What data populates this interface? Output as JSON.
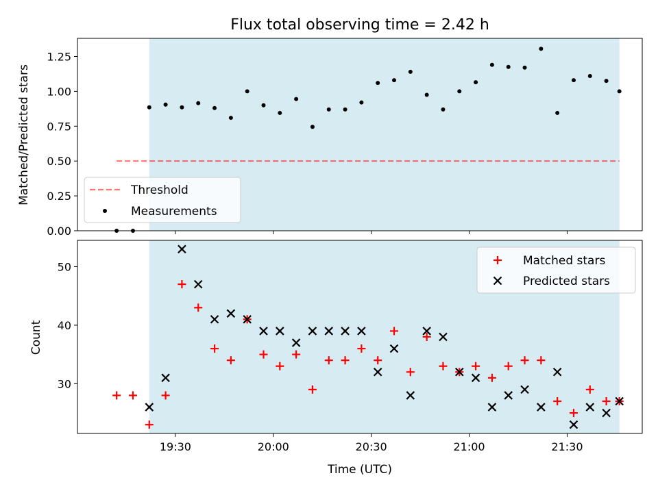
{
  "title": "Flux total observing time = 2.42 h",
  "colors": {
    "shade": "#add8e6",
    "threshold": "#ff0000",
    "measurement": "#000000",
    "matched": "#ff0000",
    "predicted": "#000000"
  },
  "chart_data": [
    {
      "type": "scatter",
      "panel": "top",
      "ylabel": "Matched/Predicted stars",
      "ylim": [
        0,
        1.38
      ],
      "yticks": [
        0.0,
        0.25,
        0.5,
        0.75,
        1.0,
        1.25
      ],
      "ytick_labels": [
        "0.00",
        "0.25",
        "0.50",
        "0.75",
        "1.00",
        "1.25"
      ],
      "shaded_span": [
        "19:22",
        "21:46"
      ],
      "legend": {
        "placement": "lower-left",
        "entries": [
          "Threshold",
          "Measurements"
        ]
      },
      "series": [
        {
          "name": "Threshold",
          "style": "dashed-line",
          "x": [
            "19:12",
            "21:46"
          ],
          "y": [
            0.5,
            0.5
          ]
        },
        {
          "name": "Measurements",
          "style": "dot",
          "x": [
            "19:12",
            "19:17",
            "19:22",
            "19:27",
            "19:32",
            "19:37",
            "19:42",
            "19:47",
            "19:52",
            "19:57",
            "20:02",
            "20:07",
            "20:12",
            "20:17",
            "20:22",
            "20:27",
            "20:32",
            "20:37",
            "20:42",
            "20:47",
            "20:52",
            "20:57",
            "21:02",
            "21:07",
            "21:12",
            "21:17",
            "21:22",
            "21:27",
            "21:32",
            "21:37",
            "21:42",
            "21:46"
          ],
          "y": [
            0.0,
            0.0,
            0.885,
            0.905,
            0.885,
            0.915,
            0.88,
            0.81,
            1.0,
            0.9,
            0.845,
            0.945,
            0.745,
            0.87,
            0.87,
            0.92,
            1.06,
            1.08,
            1.14,
            0.975,
            0.87,
            1.0,
            1.065,
            1.19,
            1.175,
            1.17,
            1.305,
            0.845,
            1.08,
            1.11,
            1.075,
            1.0
          ]
        }
      ]
    },
    {
      "type": "scatter",
      "panel": "bottom",
      "ylabel": "Count",
      "xlabel": "Time (UTC)",
      "ylim": [
        21.5,
        54.5
      ],
      "yticks": [
        30,
        40,
        50
      ],
      "xticks": [
        "19:30",
        "20:00",
        "20:30",
        "21:00",
        "21:30"
      ],
      "xlim": [
        "19:00",
        "21:53"
      ],
      "shaded_span": [
        "19:22",
        "21:46"
      ],
      "legend": {
        "placement": "upper-right",
        "entries": [
          "Matched stars",
          "Predicted stars"
        ]
      },
      "series": [
        {
          "name": "Matched stars",
          "marker": "plus",
          "x": [
            "19:12",
            "19:17",
            "19:22",
            "19:27",
            "19:32",
            "19:37",
            "19:42",
            "19:47",
            "19:52",
            "19:57",
            "20:02",
            "20:07",
            "20:12",
            "20:17",
            "20:22",
            "20:27",
            "20:32",
            "20:37",
            "20:42",
            "20:47",
            "20:52",
            "20:57",
            "21:02",
            "21:07",
            "21:12",
            "21:17",
            "21:22",
            "21:27",
            "21:32",
            "21:37",
            "21:42",
            "21:46"
          ],
          "y": [
            28,
            28,
            23,
            28,
            47,
            43,
            36,
            34,
            41,
            35,
            33,
            35,
            29,
            34,
            34,
            36,
            34,
            39,
            32,
            38,
            33,
            32,
            33,
            31,
            33,
            34,
            34,
            27,
            25,
            29,
            27,
            27
          ]
        },
        {
          "name": "Predicted stars",
          "marker": "x",
          "x": [
            "19:22",
            "19:27",
            "19:32",
            "19:37",
            "19:42",
            "19:47",
            "19:52",
            "19:57",
            "20:02",
            "20:07",
            "20:12",
            "20:17",
            "20:22",
            "20:27",
            "20:32",
            "20:37",
            "20:42",
            "20:47",
            "20:52",
            "20:57",
            "21:02",
            "21:07",
            "21:12",
            "21:17",
            "21:22",
            "21:27",
            "21:32",
            "21:37",
            "21:42",
            "21:46"
          ],
          "y": [
            26,
            31,
            53,
            47,
            41,
            42,
            41,
            39,
            39,
            37,
            39,
            39,
            39,
            39,
            32,
            36,
            28,
            39,
            38,
            32,
            31,
            26,
            28,
            29,
            26,
            32,
            23,
            26,
            25,
            27
          ]
        }
      ]
    }
  ]
}
